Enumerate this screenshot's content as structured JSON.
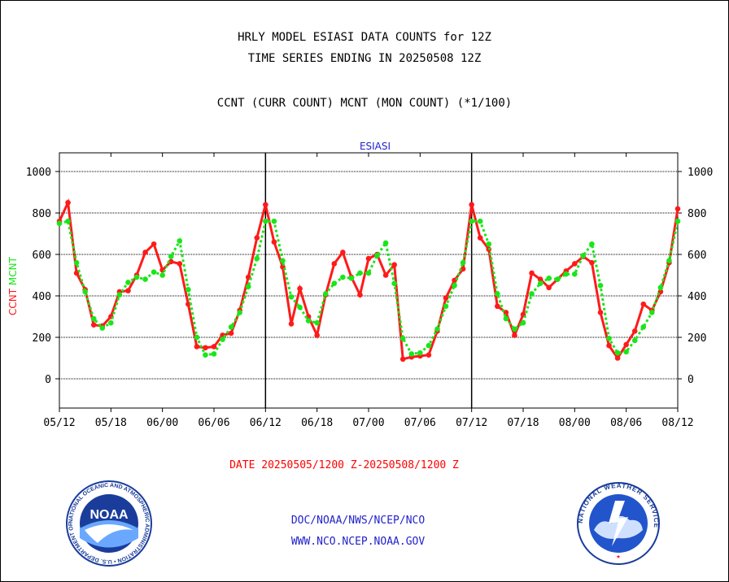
{
  "header": {
    "line1": "HRLY MODEL ESIASI DATA COUNTS for 12Z",
    "line2": "TIME SERIES ENDING IN 20250508 12Z",
    "line3": "CCNT (CURR COUNT) MCNT (MON COUNT) (*1/100)"
  },
  "footer": {
    "date_range": "DATE 20250505/1200 Z-20250508/1200 Z",
    "org": "DOC/NOAA/NWS/NCEP/NCO",
    "url": "WWW.NCO.NCEP.NOAA.GOV"
  },
  "logos": {
    "noaa_text": "NOAA",
    "noaa_ring": "NATIONAL OCEANIC AND ATMOSPHERIC ADMINISTRATION • U.S. DEPARTMENT OF COMMERCE",
    "nws_ring": "NATIONAL WEATHER SERVICE"
  },
  "colors": {
    "ccnt": "#ff1a1a",
    "mcnt": "#19e619",
    "footer_date": "#ff0000",
    "footer_links": "#2222cc",
    "plot_title": "#2222cc"
  },
  "chart_data": {
    "type": "line",
    "title": "ESIASI",
    "ylabel_parts": [
      "CCNT",
      "MCNT"
    ],
    "ylim": [
      -140,
      1080
    ],
    "yticks": [
      0,
      200,
      400,
      600,
      800,
      1000
    ],
    "xlim": [
      0,
      72
    ],
    "xticks": [
      0,
      6,
      12,
      18,
      24,
      30,
      36,
      42,
      48,
      54,
      60,
      66,
      72
    ],
    "xtick_labels": [
      "05/12",
      "05/18",
      "06/00",
      "06/06",
      "06/12",
      "06/18",
      "07/00",
      "07/06",
      "07/12",
      "07/18",
      "08/00",
      "08/06",
      "08/12"
    ],
    "day_separators": [
      24,
      48
    ],
    "grid": true,
    "series": [
      {
        "name": "CCNT",
        "values": [
          760,
          850,
          510,
          430,
          260,
          255,
          300,
          420,
          425,
          500,
          610,
          650,
          525,
          565,
          555,
          360,
          155,
          150,
          155,
          210,
          220,
          330,
          490,
          680,
          840,
          660,
          540,
          265,
          435,
          300,
          210,
          405,
          555,
          610,
          490,
          405,
          580,
          600,
          500,
          550,
          95,
          105,
          110,
          115,
          230,
          390,
          475,
          530,
          840,
          680,
          625,
          350,
          320,
          210,
          310,
          510,
          480,
          440,
          480,
          520,
          555,
          590,
          560,
          320,
          160,
          100,
          165,
          230,
          360,
          330,
          420,
          560,
          820
        ]
      },
      {
        "name": "MCNT",
        "values": [
          750,
          760,
          560,
          420,
          290,
          245,
          270,
          405,
          465,
          490,
          480,
          515,
          500,
          590,
          665,
          430,
          200,
          115,
          120,
          190,
          250,
          320,
          445,
          580,
          760,
          760,
          570,
          395,
          345,
          280,
          270,
          410,
          460,
          490,
          485,
          510,
          510,
          595,
          655,
          460,
          195,
          120,
          125,
          160,
          240,
          350,
          450,
          560,
          760,
          760,
          650,
          410,
          290,
          240,
          270,
          410,
          460,
          485,
          480,
          505,
          505,
          595,
          650,
          450,
          195,
          125,
          130,
          185,
          250,
          320,
          440,
          570,
          760
        ]
      }
    ]
  }
}
